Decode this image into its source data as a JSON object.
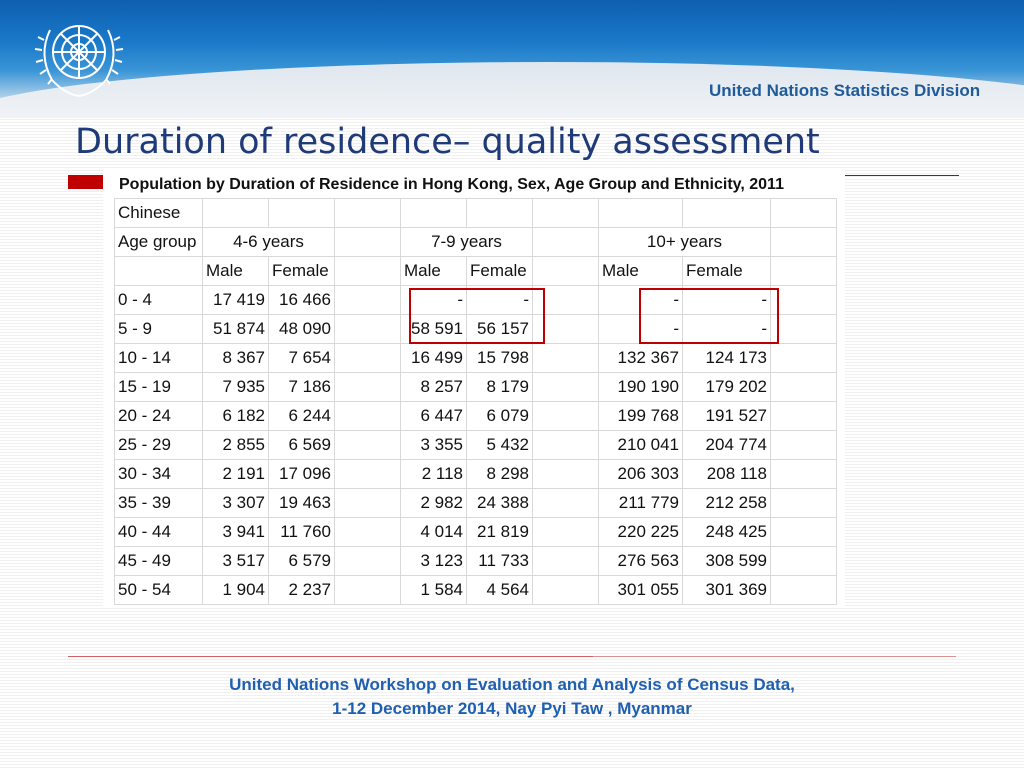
{
  "header": {
    "organization": "United Nations Statistics Division",
    "logo_icon": "un-emblem-icon"
  },
  "slide": {
    "title": "Duration of residence– quality assessment"
  },
  "table": {
    "title": "Population by Duration of Residence in Hong Kong, Sex, Age Group and Ethnicity, 2011",
    "ethnicity": "Chinese",
    "age_group_label": "Age group",
    "groups": [
      "4-6 years",
      "7-9 years",
      "10+ years"
    ],
    "sex_labels": [
      "Male",
      "Female"
    ],
    "rows": [
      {
        "age": "0 - 4",
        "v": [
          "17 419",
          "16 466",
          "-",
          "-",
          "-",
          "-"
        ]
      },
      {
        "age": "5 - 9",
        "v": [
          "51 874",
          "48 090",
          "58 591",
          "56 157",
          "-",
          "-"
        ]
      },
      {
        "age": "10 - 14",
        "v": [
          "8 367",
          "7 654",
          "16 499",
          "15 798",
          "132 367",
          "124 173"
        ]
      },
      {
        "age": "15 - 19",
        "v": [
          "7 935",
          "7 186",
          "8 257",
          "8 179",
          "190 190",
          "179 202"
        ]
      },
      {
        "age": "20 - 24",
        "v": [
          "6 182",
          "6 244",
          "6 447",
          "6 079",
          "199 768",
          "191 527"
        ]
      },
      {
        "age": "25 - 29",
        "v": [
          "2 855",
          "6 569",
          "3 355",
          "5 432",
          "210 041",
          "204 774"
        ]
      },
      {
        "age": "30 - 34",
        "v": [
          "2 191",
          "17 096",
          "2 118",
          "8 298",
          "206 303",
          "208 118"
        ]
      },
      {
        "age": "35 - 39",
        "v": [
          "3 307",
          "19 463",
          "2 982",
          "24 388",
          "211 779",
          "212 258"
        ]
      },
      {
        "age": "40 - 44",
        "v": [
          "3 941",
          "11 760",
          "4 014",
          "21 819",
          "220 225",
          "248 425"
        ]
      },
      {
        "age": "45 - 49",
        "v": [
          "3 517",
          "6 579",
          "3 123",
          "11 733",
          "276 563",
          "308 599"
        ]
      },
      {
        "age": "50 - 54",
        "v": [
          "1 904",
          "2 237",
          "1 584",
          "4 564",
          "301 055",
          "301 369"
        ]
      }
    ]
  },
  "footer": {
    "line1": "United Nations Workshop on  Evaluation and Analysis of Census Data,",
    "line2": "1-12 December 2014,  Nay Pyi Taw , Myanmar"
  },
  "colors": {
    "title": "#1f3a78",
    "footer": "#1f5fb0",
    "highlight": "#c00000"
  }
}
